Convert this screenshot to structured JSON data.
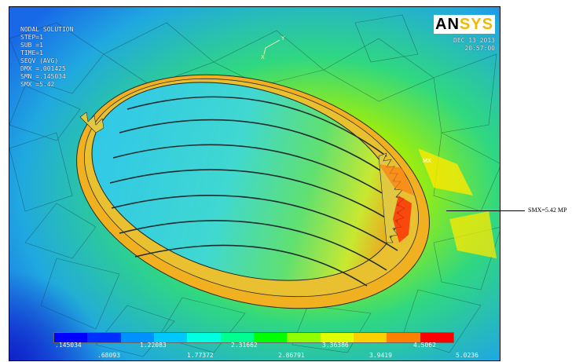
{
  "window": {
    "logo_main": "AN",
    "logo_accent": "SYS",
    "info_lines_left": [
      "NODAL SOLUTION",
      "STEP=1",
      "SUB =1",
      "TIME=1",
      "SEQV (AVG)",
      "DMX =.001425",
      "SMN =.145034",
      "SMX =5.42"
    ],
    "info_lines_right": [
      "DEC 13 2013",
      "20:57:00"
    ]
  },
  "annotation": {
    "smx_label": "SMX=5.42 MP"
  },
  "legend": {
    "colors": [
      "#0000ff",
      "#0030ff",
      "#0090ff",
      "#00c8ff",
      "#00ffe0",
      "#00ff90",
      "#00ff00",
      "#90ff00",
      "#e0ff00",
      "#ffd000",
      "#ff8000",
      "#ff0000"
    ],
    "upper_values": [
      ".145034",
      "1.22083",
      "2.31662",
      "3.36386",
      "4.5062"
    ],
    "lower_values": [
      ".68093",
      "1.77372",
      "2.86791",
      "3.9419",
      "5.0236"
    ]
  }
}
